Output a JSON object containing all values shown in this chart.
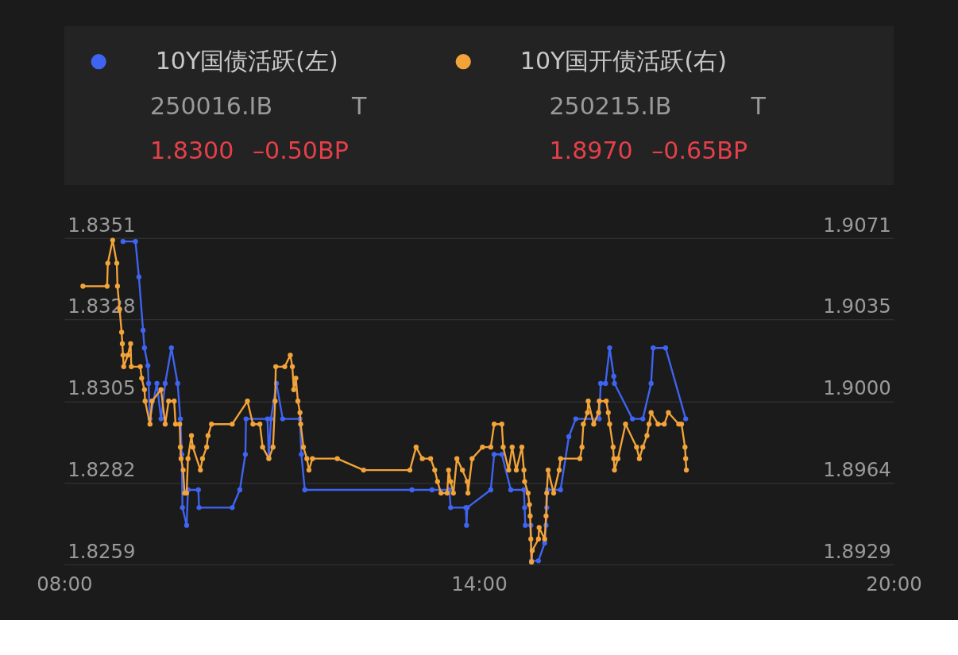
{
  "chart_data": {
    "type": "line",
    "xlim": [
      8,
      20
    ],
    "xticks": [
      {
        "value": 8,
        "label": "08:00"
      },
      {
        "value": 14,
        "label": "14:00"
      },
      {
        "value": 20,
        "label": "20:00"
      }
    ],
    "ylim": [
      1.8259,
      1.8351
    ],
    "yticks": [
      1.8259,
      1.8282,
      1.8305,
      1.8328,
      1.8351
    ],
    "y2lim": [
      1.8929,
      1.9071
    ],
    "y2ticks": [
      {
        "value": 1.8929,
        "label": "1.8929"
      },
      {
        "value": 1.89645,
        "label": "1.8964"
      },
      {
        "value": 1.9,
        "label": "1.9000"
      },
      {
        "value": 1.90355,
        "label": "1.9035"
      },
      {
        "value": 1.9071,
        "label": "1.9071"
      }
    ],
    "grid": "y",
    "legend": "top",
    "marker": "circle",
    "line_style": "solid",
    "annotations": [
      "250016.IB",
      "T",
      "1.8300",
      "–0.50BP",
      "250215.IB",
      "T",
      "1.8970",
      "–0.65BP"
    ],
    "series": [
      {
        "name": "10Y国债活跃(左)",
        "color": "#3f64f2",
        "x": [
          8.85,
          9.03,
          9.08,
          9.14,
          9.16,
          9.21,
          9.22,
          9.24,
          9.34,
          9.4,
          9.46,
          9.55,
          9.64,
          9.68,
          9.7,
          9.71,
          9.77,
          9.79,
          9.94,
          9.95,
          10.43,
          10.54,
          10.62,
          10.63,
          10.94,
          10.96,
          10.99,
          11.07,
          11.16,
          11.41,
          11.43,
          11.48,
          13.03,
          13.32,
          13.57,
          13.59,
          13.81,
          13.82,
          13.83,
          14.17,
          14.22,
          14.33,
          14.46,
          14.65,
          14.66,
          14.67,
          14.75,
          14.76,
          14.86,
          14.95,
          14.97,
          14.98,
          14.99,
          15.18,
          15.3,
          15.4,
          15.74,
          15.76,
          15.83,
          15.89,
          15.95,
          15.96,
          16.22,
          16.37,
          16.49,
          16.52,
          16.7,
          16.99
        ],
        "values": [
          1.835,
          1.835,
          1.834,
          1.8325,
          1.832,
          1.8315,
          1.831,
          1.83,
          1.831,
          1.83,
          1.831,
          1.832,
          1.831,
          1.83,
          1.829,
          1.8275,
          1.827,
          1.828,
          1.828,
          1.8275,
          1.8275,
          1.828,
          1.829,
          1.83,
          1.83,
          1.8289,
          1.83,
          1.831,
          1.83,
          1.83,
          1.829,
          1.828,
          1.828,
          1.828,
          1.828,
          1.8275,
          1.8275,
          1.827,
          1.8275,
          1.828,
          1.829,
          1.829,
          1.828,
          1.828,
          1.8275,
          1.827,
          1.827,
          1.826,
          1.826,
          1.8265,
          1.827,
          1.8275,
          1.828,
          1.828,
          1.8295,
          1.83,
          1.83,
          1.831,
          1.831,
          1.832,
          1.8312,
          1.831,
          1.83,
          1.83,
          1.831,
          1.832,
          1.832,
          1.83
        ]
      },
      {
        "name": "10Y国开债活跃(右)",
        "color": "#f2a33a",
        "axis": "y2",
        "x": [
          8.27,
          8.62,
          8.63,
          8.7,
          8.76,
          8.77,
          8.8,
          8.83,
          8.84,
          8.85,
          8.86,
          8.92,
          8.96,
          8.97,
          9.1,
          9.12,
          9.16,
          9.17,
          9.24,
          9.27,
          9.4,
          9.46,
          9.51,
          9.59,
          9.61,
          9.67,
          9.68,
          9.69,
          9.72,
          9.74,
          9.77,
          9.79,
          9.84,
          9.86,
          9.97,
          10.0,
          10.06,
          10.08,
          10.13,
          10.43,
          10.65,
          10.73,
          10.83,
          10.87,
          10.96,
          11.02,
          11.05,
          11.06,
          11.19,
          11.27,
          11.3,
          11.32,
          11.35,
          11.38,
          11.41,
          11.42,
          11.46,
          11.51,
          11.54,
          11.59,
          11.95,
          12.33,
          13.0,
          13.09,
          13.18,
          13.3,
          13.36,
          13.4,
          13.45,
          13.54,
          13.56,
          13.59,
          13.63,
          13.68,
          13.76,
          13.83,
          13.84,
          13.9,
          14.05,
          14.17,
          14.22,
          14.33,
          14.35,
          14.43,
          14.48,
          14.54,
          14.62,
          14.65,
          14.66,
          14.71,
          14.73,
          14.74,
          14.75,
          14.76,
          14.77,
          14.86,
          14.87,
          14.95,
          14.97,
          14.98,
          15.0,
          15.08,
          15.16,
          15.18,
          15.46,
          15.49,
          15.51,
          15.57,
          15.58,
          15.66,
          15.73,
          15.74,
          15.84,
          15.87,
          15.89,
          15.94,
          15.95,
          15.96,
          16.01,
          16.12,
          16.28,
          16.32,
          16.37,
          16.43,
          16.46,
          16.49,
          16.59,
          16.68,
          16.74,
          16.89,
          16.93,
          16.98,
          16.99,
          17.0
        ],
        "values": [
          1.905,
          1.905,
          1.906,
          1.907,
          1.906,
          1.905,
          1.904,
          1.903,
          1.9025,
          1.902,
          1.9015,
          1.902,
          1.9025,
          1.9015,
          1.9015,
          1.901,
          1.9005,
          1.9,
          1.899,
          1.9,
          1.9005,
          1.899,
          1.9,
          1.9,
          1.899,
          1.899,
          1.898,
          1.8975,
          1.897,
          1.896,
          1.896,
          1.8975,
          1.8985,
          1.898,
          1.897,
          1.8975,
          1.898,
          1.8985,
          1.899,
          1.899,
          1.9,
          1.899,
          1.899,
          1.898,
          1.8975,
          1.898,
          1.9,
          1.9015,
          1.9015,
          1.902,
          1.9015,
          1.9005,
          1.901,
          1.9,
          1.8995,
          1.899,
          1.898,
          1.8975,
          1.897,
          1.8975,
          1.8975,
          1.897,
          1.897,
          1.898,
          1.8975,
          1.8975,
          1.897,
          1.8965,
          1.896,
          1.896,
          1.897,
          1.8965,
          1.896,
          1.8975,
          1.897,
          1.8965,
          1.896,
          1.8975,
          1.898,
          1.898,
          1.899,
          1.899,
          1.898,
          1.897,
          1.898,
          1.897,
          1.898,
          1.897,
          1.8965,
          1.896,
          1.8955,
          1.895,
          1.894,
          1.893,
          1.8935,
          1.894,
          1.8945,
          1.894,
          1.895,
          1.896,
          1.897,
          1.896,
          1.897,
          1.8975,
          1.8975,
          1.898,
          1.899,
          1.8995,
          1.9,
          1.899,
          1.8995,
          1.9,
          1.9,
          1.8995,
          1.899,
          1.898,
          1.8975,
          1.897,
          1.8975,
          1.899,
          1.898,
          1.8975,
          1.898,
          1.8985,
          1.899,
          1.8995,
          1.899,
          1.899,
          1.8995,
          1.899,
          1.899,
          1.898,
          1.8975,
          1.897
        ]
      }
    ]
  }
}
